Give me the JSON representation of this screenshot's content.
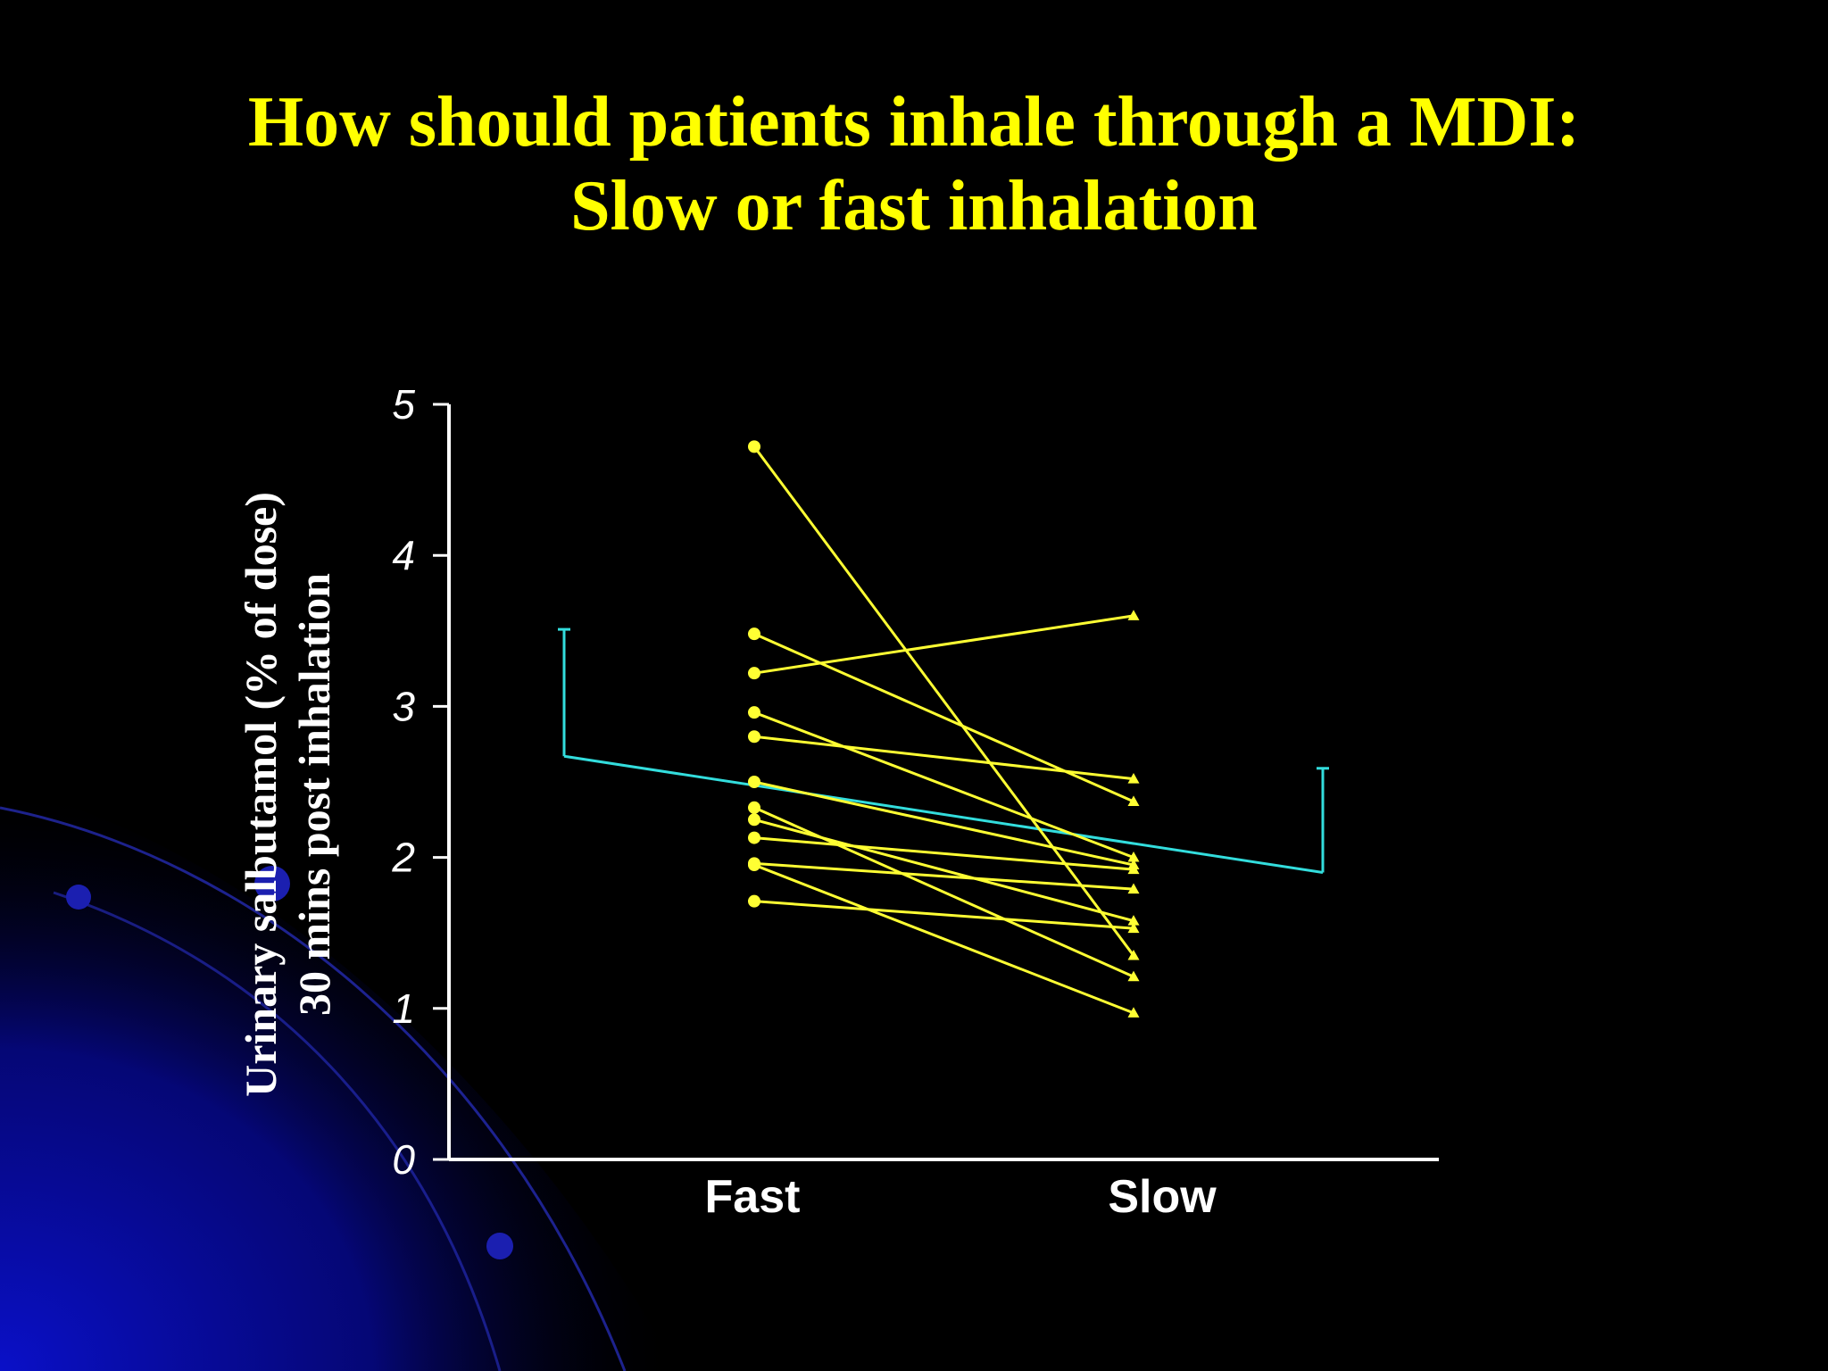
{
  "slide": {
    "title_line1": "How should patients inhale through a MDI:",
    "title_line2": "Slow or fast inhalation",
    "title_color": "#ffff00",
    "background_color": "#000000",
    "decor_color": "#0a10c8"
  },
  "chart_data": {
    "type": "line",
    "categories": [
      "Fast",
      "Slow"
    ],
    "ylabel_line1": "Urinary salbutamol (% of dose)",
    "ylabel_line2": "30 mins post inhalation",
    "ylim": [
      0,
      5
    ],
    "yticks": [
      "0",
      "1",
      "2",
      "3",
      "4",
      "5"
    ],
    "grid": false,
    "series_color": "#ffff33",
    "mean_color": "#33dddd",
    "subjects": [
      {
        "fast": 4.72,
        "slow": 1.35
      },
      {
        "fast": 3.48,
        "slow": 2.37
      },
      {
        "fast": 3.22,
        "slow": 3.6
      },
      {
        "fast": 2.96,
        "slow": 2.0
      },
      {
        "fast": 2.8,
        "slow": 2.52
      },
      {
        "fast": 2.5,
        "slow": 1.95
      },
      {
        "fast": 2.33,
        "slow": 1.21
      },
      {
        "fast": 2.25,
        "slow": 1.58
      },
      {
        "fast": 2.13,
        "slow": 1.92
      },
      {
        "fast": 1.96,
        "slow": 1.79
      },
      {
        "fast": 1.95,
        "slow": 0.97
      },
      {
        "fast": 1.71,
        "slow": 1.53
      }
    ],
    "mean": {
      "fast": 2.67,
      "slow": 1.9
    },
    "error_bars": {
      "fast_upper": 3.51,
      "slow_upper": 2.59
    }
  }
}
